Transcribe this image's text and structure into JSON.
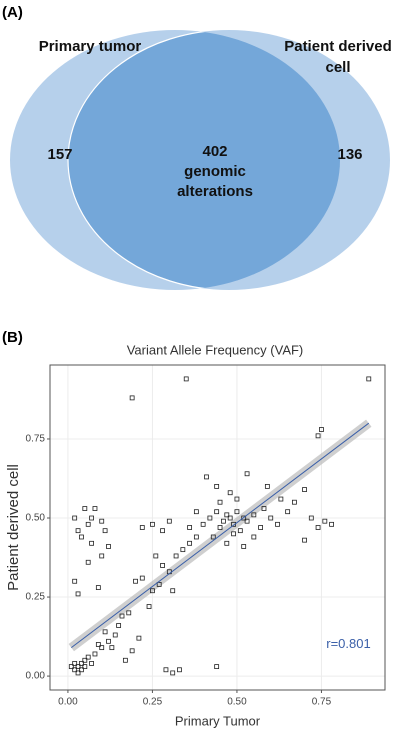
{
  "chart_data": [
    {
      "type": "venn",
      "panel": "(A)",
      "sets": [
        {
          "name": [
            "Primary tumor"
          ],
          "count": 157,
          "color": "#a9c8e8"
        },
        {
          "name": [
            "Patient derived",
            "cell"
          ],
          "count": 136,
          "color": "#a9c8e8"
        }
      ],
      "intersection": {
        "count": 402,
        "label": [
          "genomic",
          "alterations"
        ],
        "color": "#74a7d9"
      }
    },
    {
      "type": "scatter",
      "panel": "(B)",
      "title": "Variant Allele Frequency (VAF)",
      "x_label": "Primary Tumor",
      "y_label": "Patient  derived cell",
      "xlim": [
        -0.053,
        0.938
      ],
      "ylim": [
        -0.044,
        0.984
      ],
      "xticks": [
        {
          "value": 0,
          "label": "0.00"
        },
        {
          "value": 0.25,
          "label": "0.25"
        },
        {
          "value": 0.5,
          "label": "0.50"
        },
        {
          "value": 0.75,
          "label": "0.75"
        }
      ],
      "yticks": [
        {
          "value": 0,
          "label": "0.00"
        },
        {
          "value": 0.25,
          "label": "0.25"
        },
        {
          "value": 0.5,
          "label": "0.50"
        },
        {
          "value": 0.75,
          "label": "0.75"
        }
      ],
      "grid": true,
      "series": [
        {
          "color": "#222222",
          "x": [
            0.02,
            0.03,
            0.04,
            0.02,
            0.05,
            0.06,
            0.03,
            0.05,
            0.07,
            0.08,
            0.1,
            0.09,
            0.12,
            0.11,
            0.14,
            0.15,
            0.13,
            0.16,
            0.18,
            0.01,
            0.04,
            0.02,
            0.03,
            0.05,
            0.06,
            0.08,
            0.1,
            0.11,
            0.04,
            0.07,
            0.02,
            0.03,
            0.09,
            0.06,
            0.12,
            0.1,
            0.07,
            0.19,
            0.35,
            0.89,
            0.75,
            0.74,
            0.44,
            0.33,
            0.31,
            0.29,
            0.2,
            0.22,
            0.25,
            0.24,
            0.28,
            0.3,
            0.32,
            0.34,
            0.36,
            0.38,
            0.22,
            0.25,
            0.28,
            0.3,
            0.26,
            0.31,
            0.27,
            0.21,
            0.19,
            0.17,
            0.4,
            0.42,
            0.44,
            0.45,
            0.46,
            0.47,
            0.48,
            0.49,
            0.5,
            0.51,
            0.52,
            0.53,
            0.55,
            0.57,
            0.58,
            0.6,
            0.45,
            0.48,
            0.5,
            0.43,
            0.47,
            0.52,
            0.55,
            0.62,
            0.65,
            0.67,
            0.7,
            0.72,
            0.76,
            0.78,
            0.74,
            0.7,
            0.63,
            0.59,
            0.44,
            0.41,
            0.38,
            0.36,
            0.53,
            0.49
          ],
          "y": [
            0.02,
            0.03,
            0.04,
            0.04,
            0.05,
            0.06,
            0.01,
            0.03,
            0.04,
            0.07,
            0.09,
            0.1,
            0.11,
            0.14,
            0.13,
            0.16,
            0.09,
            0.19,
            0.2,
            0.03,
            0.02,
            0.5,
            0.46,
            0.53,
            0.48,
            0.53,
            0.49,
            0.46,
            0.44,
            0.42,
            0.3,
            0.26,
            0.28,
            0.36,
            0.41,
            0.38,
            0.5,
            0.88,
            0.94,
            0.94,
            0.78,
            0.76,
            0.03,
            0.02,
            0.01,
            0.02,
            0.3,
            0.31,
            0.27,
            0.22,
            0.35,
            0.33,
            0.38,
            0.4,
            0.42,
            0.44,
            0.47,
            0.48,
            0.46,
            0.49,
            0.38,
            0.27,
            0.29,
            0.12,
            0.08,
            0.05,
            0.48,
            0.5,
            0.52,
            0.47,
            0.49,
            0.51,
            0.5,
            0.48,
            0.52,
            0.46,
            0.5,
            0.49,
            0.51,
            0.47,
            0.53,
            0.5,
            0.55,
            0.58,
            0.56,
            0.44,
            0.42,
            0.41,
            0.44,
            0.48,
            0.52,
            0.55,
            0.59,
            0.5,
            0.49,
            0.48,
            0.47,
            0.43,
            0.56,
            0.6,
            0.6,
            0.63,
            0.52,
            0.47,
            0.64,
            0.45
          ]
        }
      ],
      "fit": {
        "color": "#3a5fa8",
        "x": [
          0.01,
          0.89
        ],
        "y": [
          0.09,
          0.8
        ]
      },
      "annotation": {
        "text": "r=0.801",
        "x": 0.83,
        "y": 0.1,
        "color": "#3a5fa8"
      }
    }
  ]
}
